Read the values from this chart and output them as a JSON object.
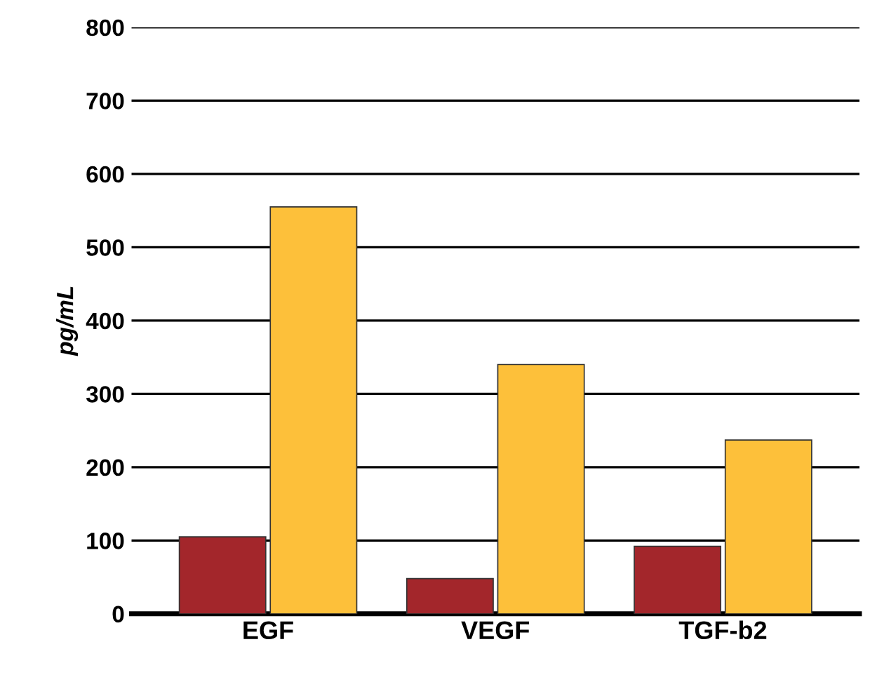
{
  "chart_data": {
    "type": "bar",
    "ylabel": "pg/mL",
    "categories": [
      "EGF",
      "VEGF",
      "TGF-b2"
    ],
    "series": [
      {
        "color": "#a3262b",
        "values": [
          105,
          48,
          92
        ]
      },
      {
        "color": "#fdc03a",
        "values": [
          555,
          340,
          237
        ]
      }
    ],
    "ylim": [
      0,
      800
    ],
    "yticks": [
      0,
      100,
      200,
      300,
      400,
      500,
      600,
      700,
      800
    ],
    "grid": "y",
    "legend": false
  }
}
